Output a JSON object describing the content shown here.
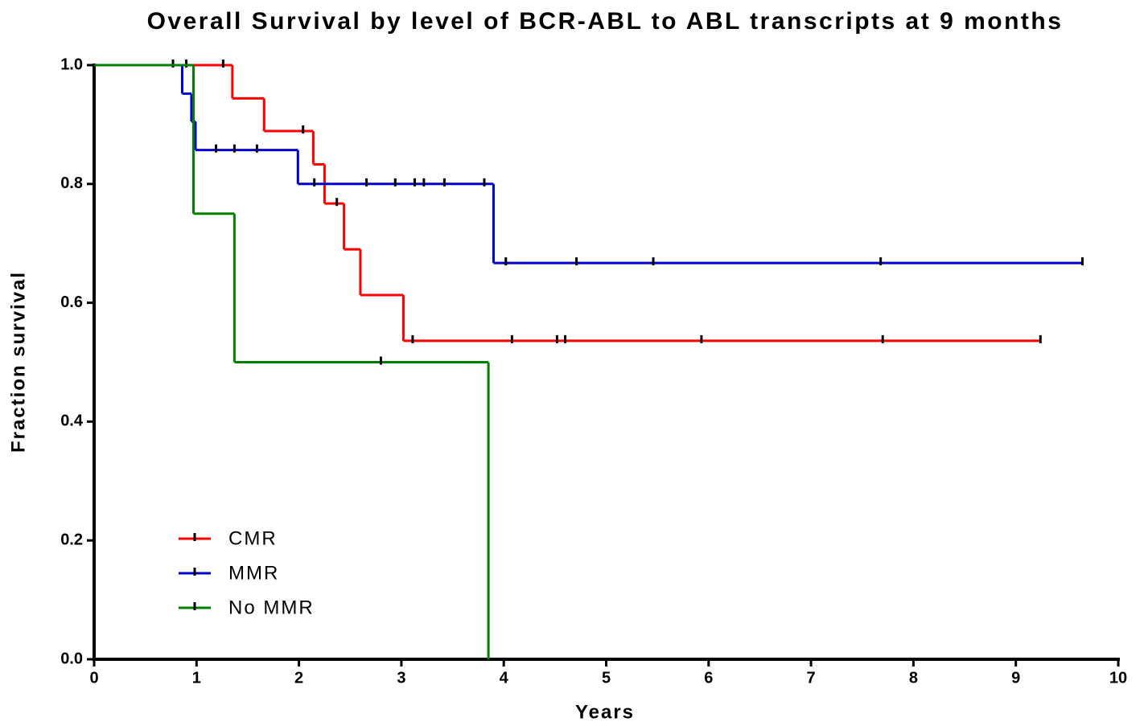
{
  "chart_data": {
    "type": "step",
    "title": "Overall  Survival by  level of BCR-ABL to ABL transcripts at 9 months",
    "xlabel": "Years",
    "ylabel": "Fraction survival",
    "xlim": [
      0,
      10
    ],
    "ylim": [
      0,
      1
    ],
    "xticks": [
      0,
      1,
      2,
      3,
      4,
      5,
      6,
      7,
      8,
      9,
      10
    ],
    "yticks": [
      {
        "value": 0,
        "label": "0.0"
      },
      {
        "value": 0.2,
        "label": "0.2"
      },
      {
        "value": 0.4,
        "label": "0.4"
      },
      {
        "value": 0.6,
        "label": "0.6"
      },
      {
        "value": 0.8,
        "label": "0.8"
      },
      {
        "value": 1,
        "label": "1.0"
      }
    ],
    "series": [
      {
        "name": "CMR",
        "color": "#ff0000",
        "x": [
          0,
          1.35,
          1.66,
          2.14,
          2.25,
          2.44,
          2.6,
          3.02,
          9.24
        ],
        "values": [
          1.0,
          0.944,
          0.889,
          0.833,
          0.767,
          0.69,
          0.613,
          0.536,
          0.536
        ],
        "censored_x": [
          0.77,
          0.9,
          1.26,
          2.04,
          2.37,
          3.11,
          4.08,
          4.52,
          4.6,
          5.93,
          7.7,
          9.24
        ],
        "censored_values": [
          1.0,
          1.0,
          1.0,
          0.889,
          0.767,
          0.536,
          0.536,
          0.536,
          0.536,
          0.536,
          0.536,
          0.536
        ]
      },
      {
        "name": "MMR",
        "color": "#0000cc",
        "x": [
          0,
          0.86,
          0.95,
          0.99,
          1.99,
          3.9,
          9.65
        ],
        "values": [
          1.0,
          0.952,
          0.905,
          0.857,
          0.8,
          0.667,
          0.667
        ],
        "censored_x": [
          1.19,
          1.37,
          1.59,
          2.15,
          2.66,
          2.94,
          3.13,
          3.22,
          3.42,
          3.81,
          4.02,
          4.71,
          5.46,
          7.68,
          9.65
        ],
        "censored_values": [
          0.857,
          0.857,
          0.857,
          0.8,
          0.8,
          0.8,
          0.8,
          0.8,
          0.8,
          0.8,
          0.667,
          0.667,
          0.667,
          0.667,
          0.667
        ]
      },
      {
        "name": "No MMR",
        "color": "#008000",
        "x": [
          0,
          0.97,
          1.37,
          3.85
        ],
        "values": [
          1.0,
          0.75,
          0.5,
          0
        ],
        "censored_x": [
          2.8
        ],
        "censored_values": [
          0.5
        ]
      }
    ]
  }
}
